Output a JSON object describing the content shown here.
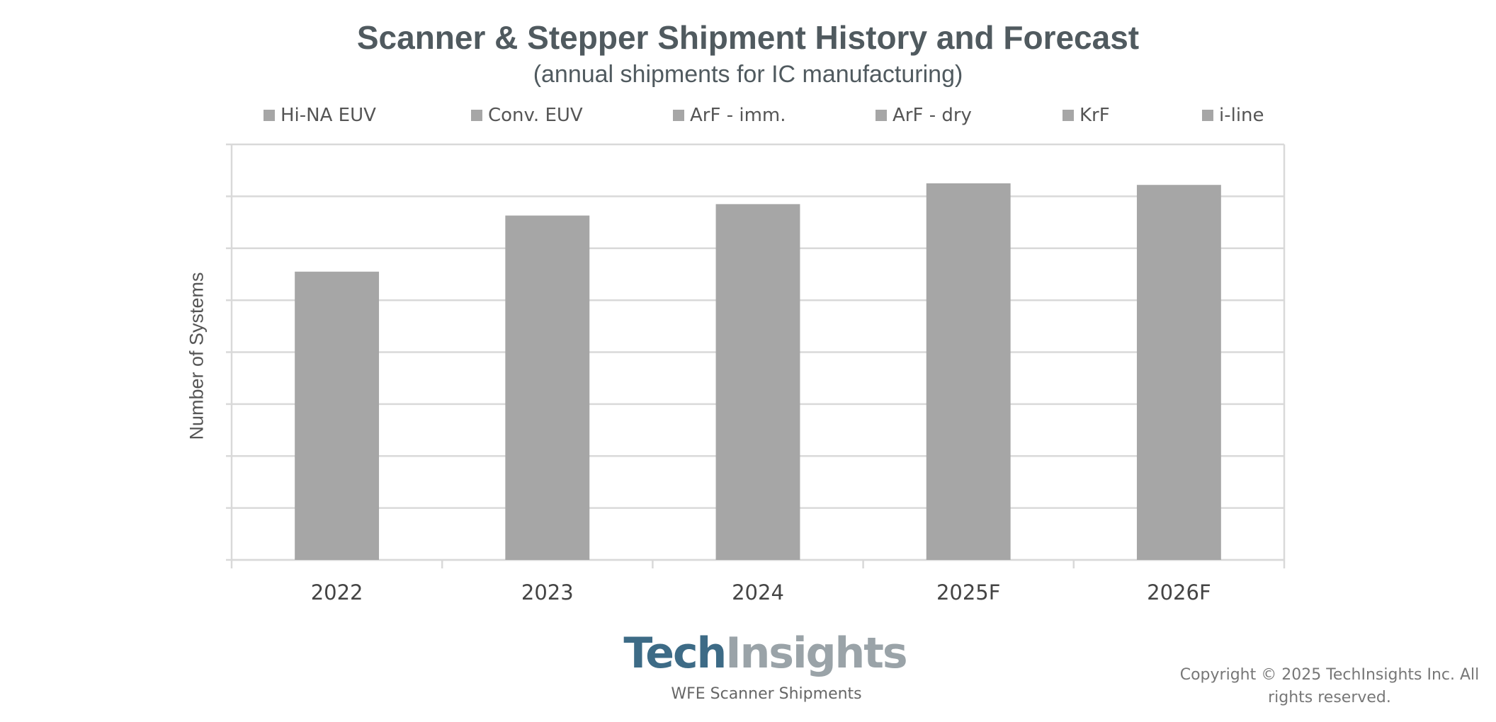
{
  "chart_data": {
    "type": "bar",
    "title": "Scanner & Stepper Shipment History and Forecast",
    "subtitle": "(annual shipments for IC manufacturing)",
    "ylabel": "Number of Systems",
    "categories": [
      "2022",
      "2023",
      "2024",
      "2025F",
      "2026F"
    ],
    "values": [
      555,
      663,
      685,
      725,
      722
    ],
    "ylim": [
      0,
      800
    ],
    "ytick_count": 8,
    "grid": true,
    "legend_position": "top",
    "legend": [
      "Hi-NA EUV",
      "Conv. EUV",
      "ArF - imm.",
      "ArF - dry",
      "KrF",
      "i-line"
    ],
    "bar_color": "#a6a6a6",
    "legend_color": "#a6a6a6",
    "grid_color": "#d9d9d9"
  },
  "footer": {
    "logo_part1": "Tech",
    "logo_part2": "Insights",
    "logo_caption": "WFE Scanner Shipments",
    "copyright": "Copyright © 2025 TechInsights Inc.  All rights reserved."
  }
}
